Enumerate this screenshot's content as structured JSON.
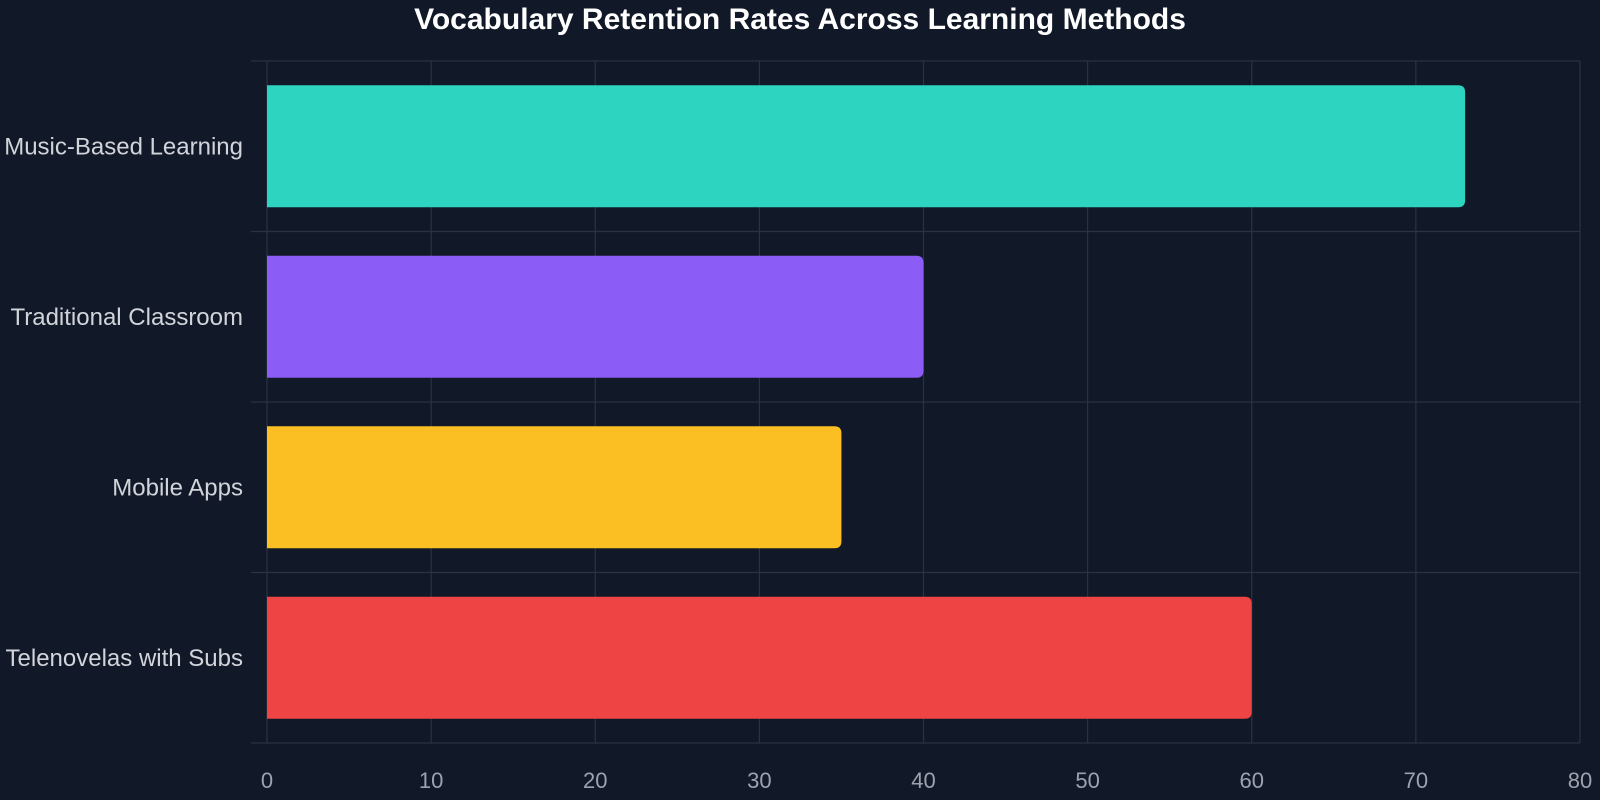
{
  "chart_data": {
    "type": "bar",
    "orientation": "horizontal",
    "title": "Vocabulary Retention Rates Across Learning Methods",
    "xlabel": "",
    "ylabel": "",
    "categories": [
      "Music-Based Learning",
      "Traditional Classroom",
      "Mobile Apps",
      "Telenovelas with Subs"
    ],
    "values": [
      73,
      40,
      35,
      60
    ],
    "colors": [
      "#2dd4bf",
      "#8b5cf6",
      "#fbbf24",
      "#ef4444"
    ],
    "xlim": [
      0,
      80
    ],
    "xticks": [
      "0",
      "10",
      "20",
      "30",
      "40",
      "50",
      "60",
      "70",
      "80"
    ],
    "grid": true,
    "legend": "none"
  },
  "theme": {
    "background": "#111827",
    "grid_color": "#2b3342",
    "title_color": "#ffffff",
    "category_label_color": "#d1d5db",
    "tick_label_color": "#9ca3af"
  }
}
